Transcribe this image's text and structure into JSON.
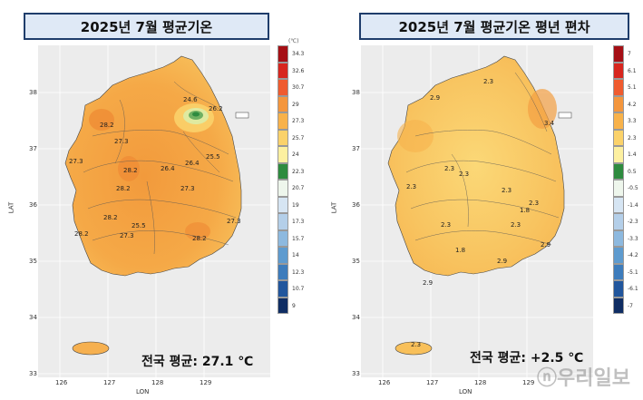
{
  "left": {
    "title": "2025년 7월 평균기온",
    "unit": "(℃)",
    "legend": [
      "34.3",
      "32.6",
      "30.7",
      "29",
      "27.3",
      "25.7",
      "24",
      "22.3",
      "20.7",
      "19",
      "17.3",
      "15.7",
      "14",
      "12.3",
      "10.7",
      "9"
    ],
    "legend_colors": [
      "#a50f15",
      "#d7261e",
      "#ef5b2f",
      "#f4963d",
      "#f8b24a",
      "#fbd26a",
      "#fdf0a0",
      "#2e8b3f",
      "#eef6ec",
      "#d6e5f3",
      "#b4cfe9",
      "#8db9df",
      "#5e9bcf",
      "#3d7cbc",
      "#21569d",
      "#0f2d63"
    ],
    "contour_labels": [
      "28.2",
      "27.3",
      "27.3",
      "26.4",
      "24.6",
      "26.2",
      "25.5",
      "28.2",
      "28.2",
      "26.4",
      "27.3",
      "28.2",
      "25.5",
      "27.3",
      "28.2",
      "27.3",
      "28.2"
    ],
    "national_avg": "전국 평균: 27.1 ℃"
  },
  "right": {
    "title": "2025년 7월 평균기온 평년 편차",
    "legend": [
      "7",
      "6.1",
      "5.1",
      "4.2",
      "3.3",
      "2.3",
      "1.4",
      "0.5",
      "-0.5",
      "-1.4",
      "-2.3",
      "-3.3",
      "-4.2",
      "-5.1",
      "-6.1",
      "-7"
    ],
    "legend_colors": [
      "#a50f15",
      "#d7261e",
      "#ef5b2f",
      "#f4963d",
      "#f8b24a",
      "#fbd26a",
      "#fdf0a0",
      "#2e8b3f",
      "#eef6ec",
      "#d6e5f3",
      "#b4cfe9",
      "#8db9df",
      "#5e9bcf",
      "#3d7cbc",
      "#21569d",
      "#0f2d63"
    ],
    "contour_labels": [
      "2.9",
      "2.3",
      "2.3",
      "2.3",
      "2.3",
      "2.3",
      "2.3",
      "1.8",
      "2.3",
      "2.3",
      "2.9",
      "1.8",
      "2.9",
      "2.9",
      "2.3",
      "3.4"
    ],
    "national_avg": "전국 평균: +2.5 ℃"
  },
  "axes": {
    "lat_ticks": [
      "38",
      "37",
      "36",
      "35",
      "34",
      "33"
    ],
    "lon_ticks": [
      "126",
      "127",
      "128",
      "129"
    ],
    "lat_label": "LAT",
    "lon_label": "LON"
  },
  "watermark": "ⓝ우리일보"
}
